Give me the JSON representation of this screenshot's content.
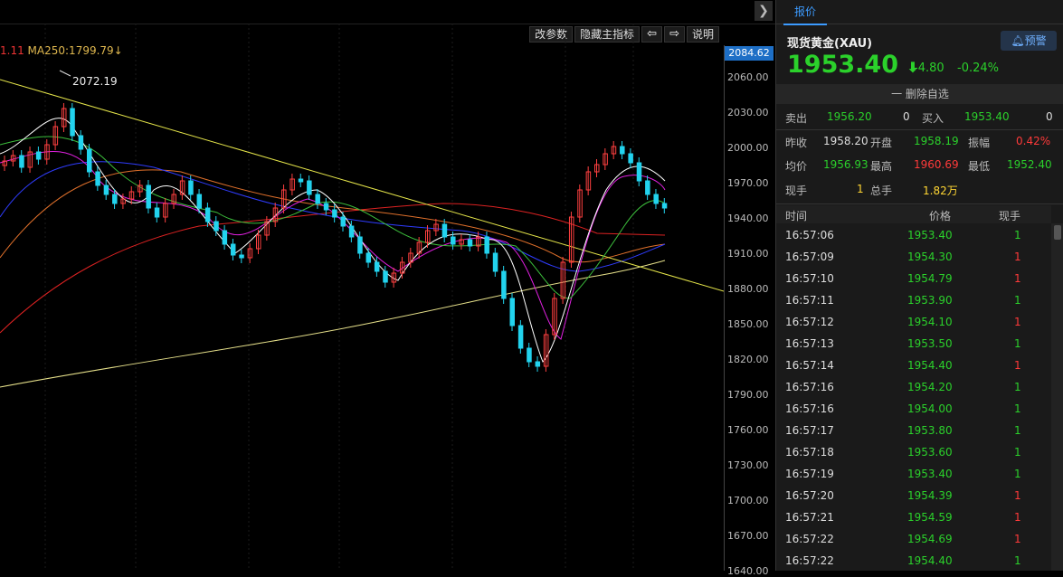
{
  "toolbar": {
    "change_params": "改参数",
    "hide_main": "隐藏主指标",
    "arrow_left": "⇦",
    "arrow_right": "⇨",
    "help": "说明",
    "collapse": "❯"
  },
  "chart_info": {
    "ma_prefix": "1.11",
    "ma_label": "MA250:1799.79↓",
    "high_label": "2072.19",
    "last_price": "2084.62"
  },
  "price_ticks": [
    "2060.00",
    "2030.00",
    "2000.00",
    "1970.00",
    "1940.00",
    "1910.00",
    "1880.00",
    "1850.00",
    "1820.00",
    "1790.00",
    "1760.00",
    "1730.00",
    "1700.00",
    "1670.00",
    "1640.00"
  ],
  "panel": {
    "tab": "报价",
    "title": "现货黄金(XAU)",
    "alert": "预警",
    "price": "1953.40",
    "arrow": "⬇",
    "change": "-4.80",
    "change_pct": "-0.24%",
    "watch": "一 删除自选",
    "sell_label": "卖出",
    "sell_price": "1956.20",
    "sell_vol": "0",
    "buy_label": "买入",
    "buy_price": "1953.40",
    "buy_vol": "0",
    "prev_close_label": "昨收",
    "prev_close": "1958.20",
    "open_label": "开盘",
    "open": "1958.19",
    "amp_label": "振幅",
    "amp": "0.42%",
    "avg_label": "均价",
    "avg": "1956.93",
    "high_label": "最高",
    "high": "1960.69",
    "low_label": "最低",
    "low": "1952.40",
    "cur_vol_label": "现手",
    "cur_vol": "1",
    "total_vol_label": "总手",
    "total_vol": "1.82万",
    "ticks_header": {
      "time": "时间",
      "price": "价格",
      "vol": "现手"
    },
    "ticks": [
      {
        "time": "16:57:06",
        "price": "1953.40",
        "vol": "1",
        "dir": "g"
      },
      {
        "time": "16:57:09",
        "price": "1954.30",
        "vol": "1",
        "dir": "r"
      },
      {
        "time": "16:57:10",
        "price": "1954.79",
        "vol": "1",
        "dir": "r"
      },
      {
        "time": "16:57:11",
        "price": "1953.90",
        "vol": "1",
        "dir": "g"
      },
      {
        "time": "16:57:12",
        "price": "1954.10",
        "vol": "1",
        "dir": "r"
      },
      {
        "time": "16:57:13",
        "price": "1953.50",
        "vol": "1",
        "dir": "g"
      },
      {
        "time": "16:57:14",
        "price": "1954.40",
        "vol": "1",
        "dir": "r"
      },
      {
        "time": "16:57:16",
        "price": "1954.20",
        "vol": "1",
        "dir": "g"
      },
      {
        "time": "16:57:16",
        "price": "1954.00",
        "vol": "1",
        "dir": "g"
      },
      {
        "time": "16:57:17",
        "price": "1953.80",
        "vol": "1",
        "dir": "g"
      },
      {
        "time": "16:57:18",
        "price": "1953.60",
        "vol": "1",
        "dir": "g"
      },
      {
        "time": "16:57:19",
        "price": "1953.40",
        "vol": "1",
        "dir": "g"
      },
      {
        "time": "16:57:20",
        "price": "1954.39",
        "vol": "1",
        "dir": "r"
      },
      {
        "time": "16:57:21",
        "price": "1954.59",
        "vol": "1",
        "dir": "r"
      },
      {
        "time": "16:57:22",
        "price": "1954.69",
        "vol": "1",
        "dir": "r"
      },
      {
        "time": "16:57:22",
        "price": "1954.40",
        "vol": "1",
        "dir": "g"
      }
    ]
  }
}
